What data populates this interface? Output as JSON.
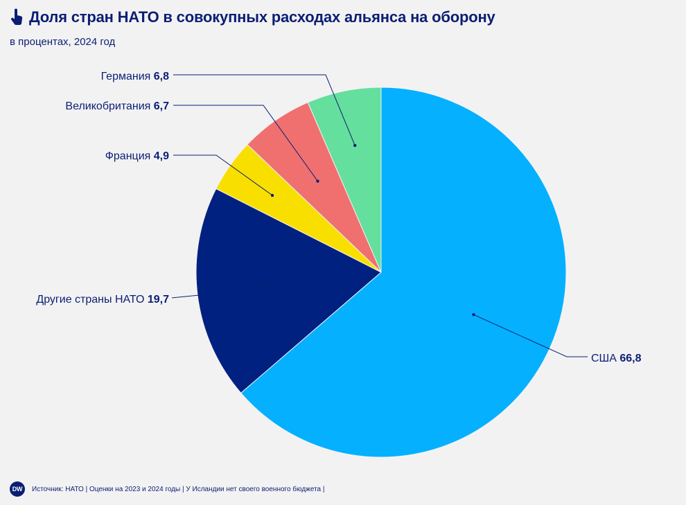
{
  "header": {
    "title": "Доля стран НАТО в совокупных расходах альянса на оборону",
    "subtitle": "в процентах, 2024 год",
    "icon": "pointer-hand-icon"
  },
  "chart_data": {
    "type": "pie",
    "title": "Доля стран НАТО в совокупных расходах альянса на оборону",
    "subtitle": "в процентах, 2024 год",
    "slices": [
      {
        "label": "США",
        "value": 66.8,
        "display": "66,8",
        "color": "#05b0ff"
      },
      {
        "label": "Другие страны НАТО",
        "value": 19.7,
        "display": "19,7",
        "color": "#002180"
      },
      {
        "label": "Франция",
        "value": 4.9,
        "display": "4,9",
        "color": "#f9df00"
      },
      {
        "label": "Великобритания",
        "value": 6.7,
        "display": "6,7",
        "color": "#f07070"
      },
      {
        "label": "Германия",
        "value": 6.8,
        "display": "6,8",
        "color": "#65df9e"
      }
    ]
  },
  "footer": {
    "logo": "DW",
    "source": "Источник: НАТО | Оценки на 2023 и 2024 годы | У Исландии нет своего военного бюджета |"
  }
}
